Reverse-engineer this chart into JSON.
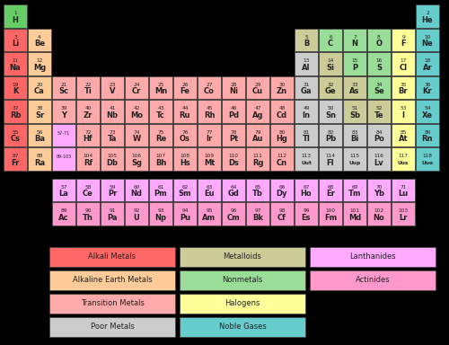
{
  "background": "#000000",
  "elements": [
    {
      "num": "1",
      "sym": "H",
      "row": 0,
      "col": 0,
      "color": "#66cc66"
    },
    {
      "num": "2",
      "sym": "He",
      "row": 0,
      "col": 17,
      "color": "#66cccc"
    },
    {
      "num": "3",
      "sym": "Li",
      "row": 1,
      "col": 0,
      "color": "#ff6666"
    },
    {
      "num": "4",
      "sym": "Be",
      "row": 1,
      "col": 1,
      "color": "#ffcc99"
    },
    {
      "num": "5",
      "sym": "B",
      "row": 1,
      "col": 12,
      "color": "#cccc99"
    },
    {
      "num": "6",
      "sym": "C",
      "row": 1,
      "col": 13,
      "color": "#99dd99"
    },
    {
      "num": "7",
      "sym": "N",
      "row": 1,
      "col": 14,
      "color": "#99dd99"
    },
    {
      "num": "8",
      "sym": "O",
      "row": 1,
      "col": 15,
      "color": "#99dd99"
    },
    {
      "num": "9",
      "sym": "F",
      "row": 1,
      "col": 16,
      "color": "#ffff99"
    },
    {
      "num": "10",
      "sym": "Ne",
      "row": 1,
      "col": 17,
      "color": "#66cccc"
    },
    {
      "num": "11",
      "sym": "Na",
      "row": 2,
      "col": 0,
      "color": "#ff6666"
    },
    {
      "num": "12",
      "sym": "Mg",
      "row": 2,
      "col": 1,
      "color": "#ffcc99"
    },
    {
      "num": "13",
      "sym": "Al",
      "row": 2,
      "col": 12,
      "color": "#cccccc"
    },
    {
      "num": "14",
      "sym": "Si",
      "row": 2,
      "col": 13,
      "color": "#cccc99"
    },
    {
      "num": "15",
      "sym": "P",
      "row": 2,
      "col": 14,
      "color": "#99dd99"
    },
    {
      "num": "16",
      "sym": "S",
      "row": 2,
      "col": 15,
      "color": "#99dd99"
    },
    {
      "num": "17",
      "sym": "Cl",
      "row": 2,
      "col": 16,
      "color": "#ffff99"
    },
    {
      "num": "18",
      "sym": "Ar",
      "row": 2,
      "col": 17,
      "color": "#66cccc"
    },
    {
      "num": "19",
      "sym": "K",
      "row": 3,
      "col": 0,
      "color": "#ff6666"
    },
    {
      "num": "20",
      "sym": "Ca",
      "row": 3,
      "col": 1,
      "color": "#ffcc99"
    },
    {
      "num": "21",
      "sym": "Sc",
      "row": 3,
      "col": 2,
      "color": "#ffaaaa"
    },
    {
      "num": "22",
      "sym": "Ti",
      "row": 3,
      "col": 3,
      "color": "#ffaaaa"
    },
    {
      "num": "23",
      "sym": "V",
      "row": 3,
      "col": 4,
      "color": "#ffaaaa"
    },
    {
      "num": "24",
      "sym": "Cr",
      "row": 3,
      "col": 5,
      "color": "#ffaaaa"
    },
    {
      "num": "25",
      "sym": "Mn",
      "row": 3,
      "col": 6,
      "color": "#ffaaaa"
    },
    {
      "num": "26",
      "sym": "Fe",
      "row": 3,
      "col": 7,
      "color": "#ffaaaa"
    },
    {
      "num": "27",
      "sym": "Co",
      "row": 3,
      "col": 8,
      "color": "#ffaaaa"
    },
    {
      "num": "28",
      "sym": "Ni",
      "row": 3,
      "col": 9,
      "color": "#ffaaaa"
    },
    {
      "num": "29",
      "sym": "Cu",
      "row": 3,
      "col": 10,
      "color": "#ffaaaa"
    },
    {
      "num": "30",
      "sym": "Zn",
      "row": 3,
      "col": 11,
      "color": "#ffaaaa"
    },
    {
      "num": "31",
      "sym": "Ga",
      "row": 3,
      "col": 12,
      "color": "#cccccc"
    },
    {
      "num": "32",
      "sym": "Ge",
      "row": 3,
      "col": 13,
      "color": "#cccc99"
    },
    {
      "num": "33",
      "sym": "As",
      "row": 3,
      "col": 14,
      "color": "#cccc99"
    },
    {
      "num": "34",
      "sym": "Se",
      "row": 3,
      "col": 15,
      "color": "#99dd99"
    },
    {
      "num": "35",
      "sym": "Br",
      "row": 3,
      "col": 16,
      "color": "#ffff99"
    },
    {
      "num": "36",
      "sym": "Kr",
      "row": 3,
      "col": 17,
      "color": "#66cccc"
    },
    {
      "num": "37",
      "sym": "Rb",
      "row": 4,
      "col": 0,
      "color": "#ff6666"
    },
    {
      "num": "38",
      "sym": "Sr",
      "row": 4,
      "col": 1,
      "color": "#ffcc99"
    },
    {
      "num": "39",
      "sym": "Y",
      "row": 4,
      "col": 2,
      "color": "#ffaaaa"
    },
    {
      "num": "40",
      "sym": "Zr",
      "row": 4,
      "col": 3,
      "color": "#ffaaaa"
    },
    {
      "num": "41",
      "sym": "Nb",
      "row": 4,
      "col": 4,
      "color": "#ffaaaa"
    },
    {
      "num": "42",
      "sym": "Mo",
      "row": 4,
      "col": 5,
      "color": "#ffaaaa"
    },
    {
      "num": "43",
      "sym": "Tc",
      "row": 4,
      "col": 6,
      "color": "#ffaaaa"
    },
    {
      "num": "44",
      "sym": "Ru",
      "row": 4,
      "col": 7,
      "color": "#ffaaaa"
    },
    {
      "num": "45",
      "sym": "Rh",
      "row": 4,
      "col": 8,
      "color": "#ffaaaa"
    },
    {
      "num": "46",
      "sym": "Pd",
      "row": 4,
      "col": 9,
      "color": "#ffaaaa"
    },
    {
      "num": "47",
      "sym": "Ag",
      "row": 4,
      "col": 10,
      "color": "#ffaaaa"
    },
    {
      "num": "48",
      "sym": "Cd",
      "row": 4,
      "col": 11,
      "color": "#ffaaaa"
    },
    {
      "num": "49",
      "sym": "In",
      "row": 4,
      "col": 12,
      "color": "#cccccc"
    },
    {
      "num": "50",
      "sym": "Sn",
      "row": 4,
      "col": 13,
      "color": "#cccccc"
    },
    {
      "num": "51",
      "sym": "Sb",
      "row": 4,
      "col": 14,
      "color": "#cccc99"
    },
    {
      "num": "52",
      "sym": "Te",
      "row": 4,
      "col": 15,
      "color": "#cccc99"
    },
    {
      "num": "53",
      "sym": "I",
      "row": 4,
      "col": 16,
      "color": "#ffff99"
    },
    {
      "num": "54",
      "sym": "Xe",
      "row": 4,
      "col": 17,
      "color": "#66cccc"
    },
    {
      "num": "55",
      "sym": "Cs",
      "row": 5,
      "col": 0,
      "color": "#ff6666"
    },
    {
      "num": "56",
      "sym": "Ba",
      "row": 5,
      "col": 1,
      "color": "#ffcc99"
    },
    {
      "num": "57-71",
      "sym": "",
      "row": 5,
      "col": 2,
      "color": "#ffaaff"
    },
    {
      "num": "72",
      "sym": "Hf",
      "row": 5,
      "col": 3,
      "color": "#ffaaaa"
    },
    {
      "num": "73",
      "sym": "Ta",
      "row": 5,
      "col": 4,
      "color": "#ffaaaa"
    },
    {
      "num": "74",
      "sym": "W",
      "row": 5,
      "col": 5,
      "color": "#ffaaaa"
    },
    {
      "num": "75",
      "sym": "Re",
      "row": 5,
      "col": 6,
      "color": "#ffaaaa"
    },
    {
      "num": "76",
      "sym": "Os",
      "row": 5,
      "col": 7,
      "color": "#ffaaaa"
    },
    {
      "num": "77",
      "sym": "Ir",
      "row": 5,
      "col": 8,
      "color": "#ffaaaa"
    },
    {
      "num": "78",
      "sym": "Pt",
      "row": 5,
      "col": 9,
      "color": "#ffaaaa"
    },
    {
      "num": "79",
      "sym": "Au",
      "row": 5,
      "col": 10,
      "color": "#ffaaaa"
    },
    {
      "num": "80",
      "sym": "Hg",
      "row": 5,
      "col": 11,
      "color": "#ffaaaa"
    },
    {
      "num": "81",
      "sym": "Tl",
      "row": 5,
      "col": 12,
      "color": "#cccccc"
    },
    {
      "num": "82",
      "sym": "Pb",
      "row": 5,
      "col": 13,
      "color": "#cccccc"
    },
    {
      "num": "83",
      "sym": "Bi",
      "row": 5,
      "col": 14,
      "color": "#cccccc"
    },
    {
      "num": "84",
      "sym": "Po",
      "row": 5,
      "col": 15,
      "color": "#cccccc"
    },
    {
      "num": "85",
      "sym": "At",
      "row": 5,
      "col": 16,
      "color": "#ffff99"
    },
    {
      "num": "86",
      "sym": "Rn",
      "row": 5,
      "col": 17,
      "color": "#66cccc"
    },
    {
      "num": "87",
      "sym": "Fr",
      "row": 6,
      "col": 0,
      "color": "#ff6666"
    },
    {
      "num": "88",
      "sym": "Ra",
      "row": 6,
      "col": 1,
      "color": "#ffcc99"
    },
    {
      "num": "89-103",
      "sym": "",
      "row": 6,
      "col": 2,
      "color": "#ffaaff"
    },
    {
      "num": "104",
      "sym": "Rf",
      "row": 6,
      "col": 3,
      "color": "#ffaaaa"
    },
    {
      "num": "105",
      "sym": "Db",
      "row": 6,
      "col": 4,
      "color": "#ffaaaa"
    },
    {
      "num": "106",
      "sym": "Sg",
      "row": 6,
      "col": 5,
      "color": "#ffaaaa"
    },
    {
      "num": "107",
      "sym": "Bh",
      "row": 6,
      "col": 6,
      "color": "#ffaaaa"
    },
    {
      "num": "108",
      "sym": "Hs",
      "row": 6,
      "col": 7,
      "color": "#ffaaaa"
    },
    {
      "num": "109",
      "sym": "Mt",
      "row": 6,
      "col": 8,
      "color": "#ffaaaa"
    },
    {
      "num": "110",
      "sym": "Ds",
      "row": 6,
      "col": 9,
      "color": "#ffaaaa"
    },
    {
      "num": "111",
      "sym": "Rg",
      "row": 6,
      "col": 10,
      "color": "#ffaaaa"
    },
    {
      "num": "112",
      "sym": "Cn",
      "row": 6,
      "col": 11,
      "color": "#ffaaaa"
    },
    {
      "num": "113",
      "sym": "Uut",
      "row": 6,
      "col": 12,
      "color": "#cccccc"
    },
    {
      "num": "114",
      "sym": "Fl",
      "row": 6,
      "col": 13,
      "color": "#cccccc"
    },
    {
      "num": "115",
      "sym": "Uup",
      "row": 6,
      "col": 14,
      "color": "#cccccc"
    },
    {
      "num": "116",
      "sym": "Lv",
      "row": 6,
      "col": 15,
      "color": "#cccccc"
    },
    {
      "num": "117",
      "sym": "Uus",
      "row": 6,
      "col": 16,
      "color": "#ffff99"
    },
    {
      "num": "118",
      "sym": "Uuo",
      "row": 6,
      "col": 17,
      "color": "#66cccc"
    },
    {
      "num": "57",
      "sym": "La",
      "row": 8,
      "col": 2,
      "color": "#ffaaff"
    },
    {
      "num": "58",
      "sym": "Ce",
      "row": 8,
      "col": 3,
      "color": "#ffaaff"
    },
    {
      "num": "59",
      "sym": "Pr",
      "row": 8,
      "col": 4,
      "color": "#ffaaff"
    },
    {
      "num": "60",
      "sym": "Nd",
      "row": 8,
      "col": 5,
      "color": "#ffaaff"
    },
    {
      "num": "61",
      "sym": "Pm",
      "row": 8,
      "col": 6,
      "color": "#ffaaff"
    },
    {
      "num": "62",
      "sym": "Sm",
      "row": 8,
      "col": 7,
      "color": "#ffaaff"
    },
    {
      "num": "63",
      "sym": "Eu",
      "row": 8,
      "col": 8,
      "color": "#ffaaff"
    },
    {
      "num": "64",
      "sym": "Gd",
      "row": 8,
      "col": 9,
      "color": "#ffaaff"
    },
    {
      "num": "65",
      "sym": "Tb",
      "row": 8,
      "col": 10,
      "color": "#ffaaff"
    },
    {
      "num": "66",
      "sym": "Dy",
      "row": 8,
      "col": 11,
      "color": "#ffaaff"
    },
    {
      "num": "67",
      "sym": "Ho",
      "row": 8,
      "col": 12,
      "color": "#ffaaff"
    },
    {
      "num": "68",
      "sym": "Er",
      "row": 8,
      "col": 13,
      "color": "#ffaaff"
    },
    {
      "num": "69",
      "sym": "Tm",
      "row": 8,
      "col": 14,
      "color": "#ffaaff"
    },
    {
      "num": "70",
      "sym": "Yb",
      "row": 8,
      "col": 15,
      "color": "#ffaaff"
    },
    {
      "num": "71",
      "sym": "Lu",
      "row": 8,
      "col": 16,
      "color": "#ffaaff"
    },
    {
      "num": "89",
      "sym": "Ac",
      "row": 9,
      "col": 2,
      "color": "#ff99cc"
    },
    {
      "num": "90",
      "sym": "Th",
      "row": 9,
      "col": 3,
      "color": "#ff99cc"
    },
    {
      "num": "91",
      "sym": "Pa",
      "row": 9,
      "col": 4,
      "color": "#ff99cc"
    },
    {
      "num": "92",
      "sym": "U",
      "row": 9,
      "col": 5,
      "color": "#ff99cc"
    },
    {
      "num": "93",
      "sym": "Np",
      "row": 9,
      "col": 6,
      "color": "#ff99cc"
    },
    {
      "num": "94",
      "sym": "Pu",
      "row": 9,
      "col": 7,
      "color": "#ff99cc"
    },
    {
      "num": "95",
      "sym": "Am",
      "row": 9,
      "col": 8,
      "color": "#ff99cc"
    },
    {
      "num": "96",
      "sym": "Cm",
      "row": 9,
      "col": 9,
      "color": "#ff99cc"
    },
    {
      "num": "97",
      "sym": "Bk",
      "row": 9,
      "col": 10,
      "color": "#ff99cc"
    },
    {
      "num": "98",
      "sym": "Cf",
      "row": 9,
      "col": 11,
      "color": "#ff99cc"
    },
    {
      "num": "99",
      "sym": "Es",
      "row": 9,
      "col": 12,
      "color": "#ff99cc"
    },
    {
      "num": "100",
      "sym": "Fm",
      "row": 9,
      "col": 13,
      "color": "#ff99cc"
    },
    {
      "num": "101",
      "sym": "Md",
      "row": 9,
      "col": 14,
      "color": "#ff99cc"
    },
    {
      "num": "102",
      "sym": "No",
      "row": 9,
      "col": 15,
      "color": "#ff99cc"
    },
    {
      "num": "103",
      "sym": "Lr",
      "row": 9,
      "col": 16,
      "color": "#ff99cc"
    }
  ],
  "legend": [
    {
      "label": "Alkali Metals",
      "color": "#ff6666",
      "lrow": 0,
      "lcol": 0
    },
    {
      "label": "Metalloids",
      "color": "#cccc99",
      "lrow": 0,
      "lcol": 1
    },
    {
      "label": "Lanthanides",
      "color": "#ffaaff",
      "lrow": 0,
      "lcol": 2
    },
    {
      "label": "Alkaline Earth Metals",
      "color": "#ffcc99",
      "lrow": 1,
      "lcol": 0
    },
    {
      "label": "Nonmetals",
      "color": "#99dd99",
      "lrow": 1,
      "lcol": 1
    },
    {
      "label": "Actinides",
      "color": "#ff99cc",
      "lrow": 1,
      "lcol": 2
    },
    {
      "label": "Transition Metals",
      "color": "#ffaaaa",
      "lrow": 2,
      "lcol": 0
    },
    {
      "label": "Halogens",
      "color": "#ffff99",
      "lrow": 2,
      "lcol": 1
    },
    {
      "label": "Poor Metals",
      "color": "#cccccc",
      "lrow": 3,
      "lcol": 0
    },
    {
      "label": "Noble Gases",
      "color": "#66cccc",
      "lrow": 3,
      "lcol": 1
    }
  ],
  "fig_w": 5.0,
  "fig_h": 3.84,
  "dpi": 100
}
